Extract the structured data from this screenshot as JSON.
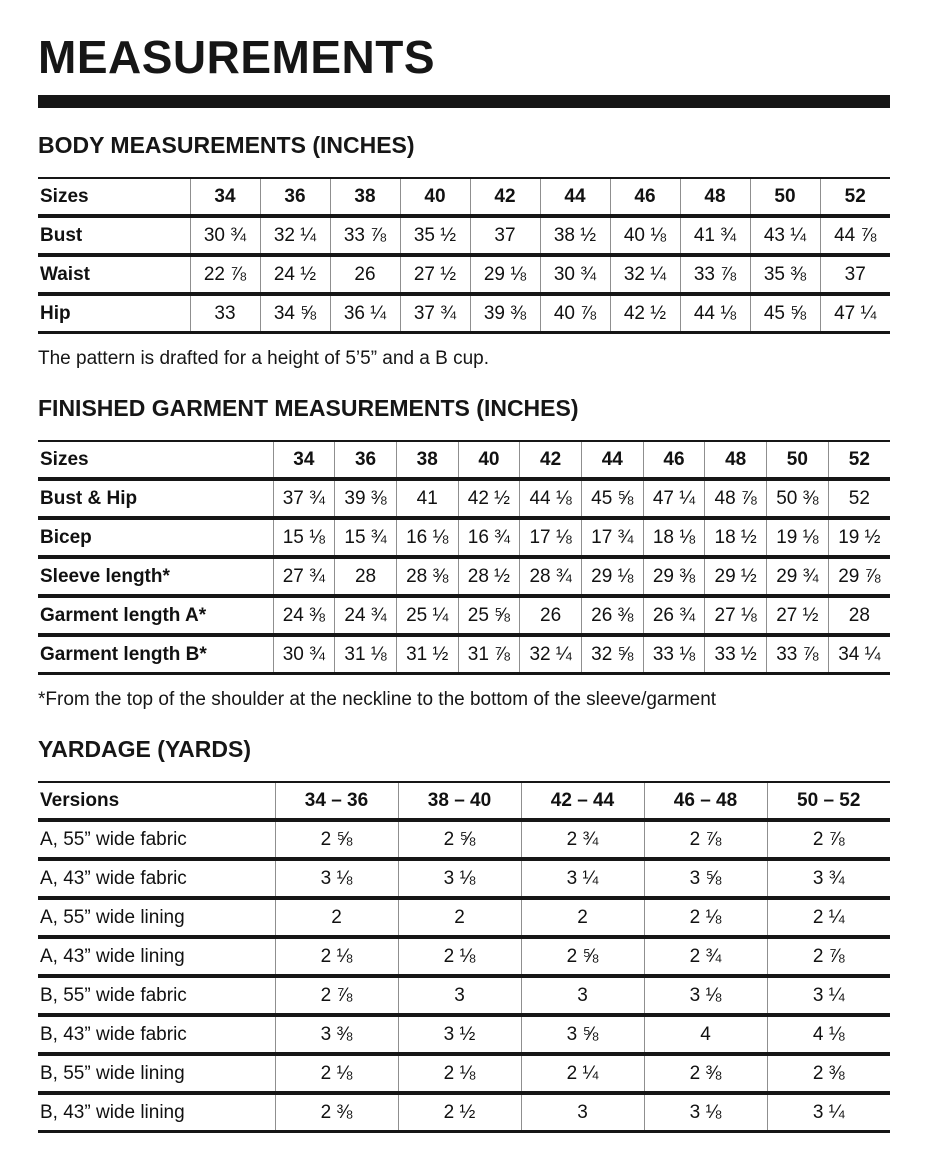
{
  "title": "MEASUREMENTS",
  "sections": {
    "body": {
      "heading": "BODY MEASUREMENTS (INCHES)",
      "note": "The pattern is drafted for a height of 5’5” and a B cup.",
      "table": {
        "label_header": "Sizes",
        "columns": [
          "34",
          "36",
          "38",
          "40",
          "42",
          "44",
          "46",
          "48",
          "50",
          "52"
        ],
        "rows": [
          {
            "label": "Bust",
            "values": [
              "30 ¾",
              "32 ¼",
              "33 ⅞",
              "35 ½",
              "37",
              "38 ½",
              "40 ⅛",
              "41 ¾",
              "43 ¼",
              "44 ⅞"
            ]
          },
          {
            "label": "Waist",
            "values": [
              "22 ⅞",
              "24 ½",
              "26",
              "27 ½",
              "29 ⅛",
              "30 ¾",
              "32 ¼",
              "33 ⅞",
              "35 ⅜",
              "37"
            ]
          },
          {
            "label": "Hip",
            "values": [
              "33",
              "34 ⅝",
              "36 ¼",
              "37 ¾",
              "39 ⅜",
              "40 ⅞",
              "42 ½",
              "44 ⅛",
              "45 ⅝",
              "47 ¼"
            ]
          }
        ]
      }
    },
    "finished": {
      "heading": "FINISHED GARMENT MEASUREMENTS (INCHES)",
      "footnote": "*From the top of the shoulder at the neckline to the bottom of the sleeve/garment",
      "table": {
        "label_header": "Sizes",
        "columns": [
          "34",
          "36",
          "38",
          "40",
          "42",
          "44",
          "46",
          "48",
          "50",
          "52"
        ],
        "rows": [
          {
            "label": "Bust & Hip",
            "values": [
              "37 ¾",
              "39 ⅜",
              "41",
              "42 ½",
              "44 ⅛",
              "45 ⅝",
              "47 ¼",
              "48 ⅞",
              "50 ⅜",
              "52"
            ]
          },
          {
            "label": "Bicep",
            "values": [
              "15 ⅛",
              "15 ¾",
              "16 ⅛",
              "16 ¾",
              "17 ⅛",
              "17 ¾",
              "18 ⅛",
              "18 ½",
              "19 ⅛",
              "19 ½"
            ]
          },
          {
            "label": "Sleeve length*",
            "values": [
              "27 ¾",
              "28",
              "28 ⅜",
              "28 ½",
              "28 ¾",
              "29 ⅛",
              "29 ⅜",
              "29 ½",
              "29 ¾",
              "29 ⅞"
            ]
          },
          {
            "label": "Garment length A*",
            "values": [
              "24 ⅜",
              "24 ¾",
              "25 ¼",
              "25 ⅝",
              "26",
              "26 ⅜",
              "26 ¾",
              "27 ⅛",
              "27 ½",
              "28"
            ]
          },
          {
            "label": "Garment length B*",
            "values": [
              "30 ¾",
              "31 ⅛",
              "31 ½",
              "31 ⅞",
              "32 ¼",
              "32 ⅝",
              "33 ⅛",
              "33 ½",
              "33 ⅞",
              "34 ¼"
            ]
          }
        ]
      }
    },
    "yardage": {
      "heading": "YARDAGE (YARDS)",
      "table": {
        "label_header": "Versions",
        "columns": [
          "34 – 36",
          "38 – 40",
          "42 – 44",
          "46 – 48",
          "50 – 52"
        ],
        "rows": [
          {
            "label": "A, 55” wide fabric",
            "values": [
              "2 ⅝",
              "2 ⅝",
              "2 ¾",
              "2 ⅞",
              "2 ⅞"
            ]
          },
          {
            "label": "A, 43” wide fabric",
            "values": [
              "3 ⅛",
              "3 ⅛",
              "3 ¼",
              "3 ⅝",
              "3 ¾"
            ]
          },
          {
            "label": "A, 55” wide lining",
            "values": [
              "2",
              "2",
              "2",
              "2 ⅛",
              "2 ¼"
            ]
          },
          {
            "label": "A, 43” wide lining",
            "values": [
              "2 ⅛",
              "2 ⅛",
              "2 ⅝",
              "2 ¾",
              "2 ⅞"
            ]
          },
          {
            "label": "B, 55” wide fabric",
            "values": [
              "2 ⅞",
              "3",
              "3",
              "3 ⅛",
              "3 ¼"
            ]
          },
          {
            "label": "B, 43” wide fabric",
            "values": [
              "3 ⅜",
              "3 ½",
              "3 ⅝",
              "4",
              "4 ⅛"
            ]
          },
          {
            "label": "B, 55” wide lining",
            "values": [
              "2 ⅛",
              "2 ⅛",
              "2 ¼",
              "2 ⅜",
              "2 ⅜"
            ]
          },
          {
            "label": "B, 43” wide lining",
            "values": [
              "2 ⅜",
              "2 ½",
              "3",
              "3 ⅛",
              "3 ¼"
            ]
          }
        ]
      }
    }
  },
  "colors": {
    "text": "#161616",
    "divider": "#161616",
    "grid_line": "#8f8f8f",
    "background": "#ffffff"
  }
}
